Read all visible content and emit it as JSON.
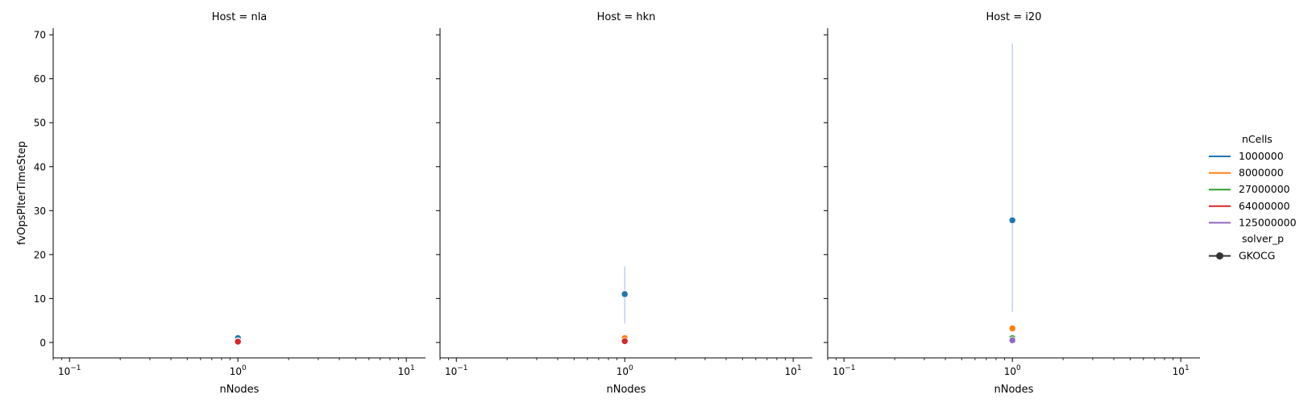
{
  "chart_data": {
    "type": "scatter",
    "figure": {
      "xlabel": "nNodes",
      "ylabel": "fvOpsPIterTimeStep",
      "x_scale": "log",
      "xlim": [
        0.08,
        13
      ],
      "ylim": [
        -3.5,
        71.5
      ],
      "x_ticks_major": [
        {
          "value": 0.1,
          "base": "10",
          "exp": "−1"
        },
        {
          "value": 1,
          "base": "10",
          "exp": "0"
        },
        {
          "value": 10,
          "base": "10",
          "exp": "1"
        }
      ],
      "y_ticks": [
        "0",
        "10",
        "20",
        "30",
        "40",
        "50",
        "60",
        "70"
      ],
      "grid": false
    },
    "panels": [
      {
        "title": "Host = nla",
        "points": [
          {
            "x": 1,
            "y": 1.0,
            "color": "#1f77b4"
          },
          {
            "x": 1,
            "y": 0.3,
            "color": "#ff7f0e"
          },
          {
            "x": 1,
            "y": 0.2,
            "color": "#d62728"
          }
        ],
        "error_bars": []
      },
      {
        "title": "Host = hkn",
        "points": [
          {
            "x": 1,
            "y": 11.0,
            "color": "#1f77b4"
          },
          {
            "x": 1,
            "y": 1.0,
            "color": "#ff7f0e"
          },
          {
            "x": 1,
            "y": 0.3,
            "color": "#d62728"
          }
        ],
        "error_bars": [
          {
            "x": 1,
            "low": 4.3,
            "high": 17.3,
            "color": "#aec7e8"
          }
        ]
      },
      {
        "title": "Host = i20",
        "points": [
          {
            "x": 1,
            "y": 27.8,
            "color": "#1f77b4"
          },
          {
            "x": 1,
            "y": 3.2,
            "color": "#ff7f0e"
          },
          {
            "x": 1,
            "y": 1.0,
            "color": "#2ca02c"
          },
          {
            "x": 1,
            "y": 0.5,
            "color": "#9467bd"
          }
        ],
        "error_bars": [
          {
            "x": 1,
            "low": 7.0,
            "high": 68.0,
            "color": "#aec7e8"
          }
        ]
      }
    ],
    "legend": {
      "placement": "right",
      "hue_title": "nCells",
      "hue_entries": [
        {
          "label": "1000000",
          "color": "#1f77b4"
        },
        {
          "label": "8000000",
          "color": "#ff7f0e"
        },
        {
          "label": "27000000",
          "color": "#2ca02c"
        },
        {
          "label": "64000000",
          "color": "#d62728"
        },
        {
          "label": "125000000",
          "color": "#9467bd"
        }
      ],
      "style_title": "solver_p",
      "style_entries": [
        {
          "label": "GKOCG",
          "color": "#333333"
        }
      ]
    }
  }
}
